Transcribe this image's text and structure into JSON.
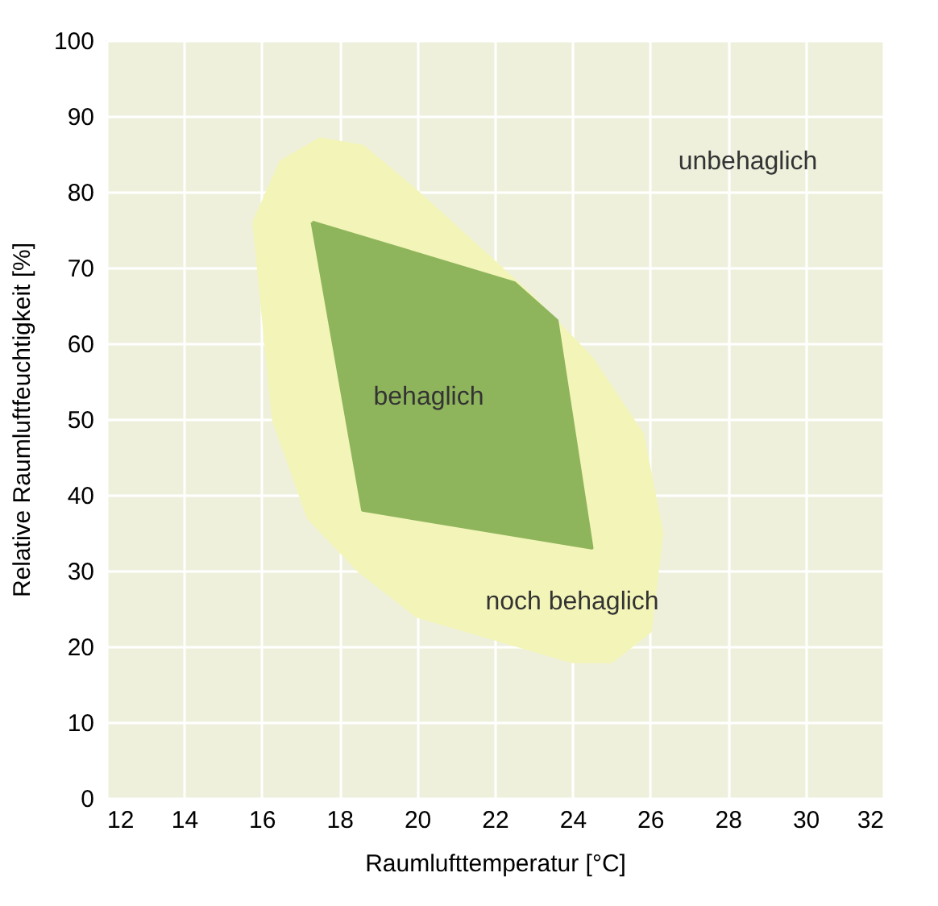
{
  "chart_data": {
    "type": "area",
    "xlabel": "Raumlufttemperatur [°C]",
    "ylabel": "Relative Raumluftfeuchtigkeit [%]",
    "xlim": [
      12,
      32
    ],
    "xticks": [
      12,
      14,
      16,
      18,
      20,
      22,
      24,
      26,
      28,
      30,
      32
    ],
    "ylim": [
      0,
      100
    ],
    "yticks": [
      0,
      10,
      20,
      30,
      40,
      50,
      60,
      70,
      80,
      90,
      100
    ],
    "grid": true,
    "series": [
      {
        "color": "#f3f5b8",
        "x": [
          15.8,
          16.5,
          17.5,
          18.6,
          20,
          21.5,
          23,
          24.5,
          25.8,
          26.3,
          26,
          25,
          24,
          22,
          20,
          18.5,
          17.2,
          16.3,
          15.8
        ],
        "values": [
          76,
          84,
          87,
          86,
          80,
          73,
          66,
          58,
          48,
          35,
          22,
          18,
          18,
          21,
          24,
          30,
          37,
          50,
          76
        ]
      },
      {
        "color": "#8fb55c",
        "x": [
          17.3,
          22.5,
          23.6,
          24.5,
          18.6,
          17.3
        ],
        "values": [
          76,
          68,
          63,
          33,
          38,
          76
        ]
      }
    ],
    "annotations": [
      "unbehaglich",
      "behaglich",
      "noch behaglich"
    ]
  }
}
